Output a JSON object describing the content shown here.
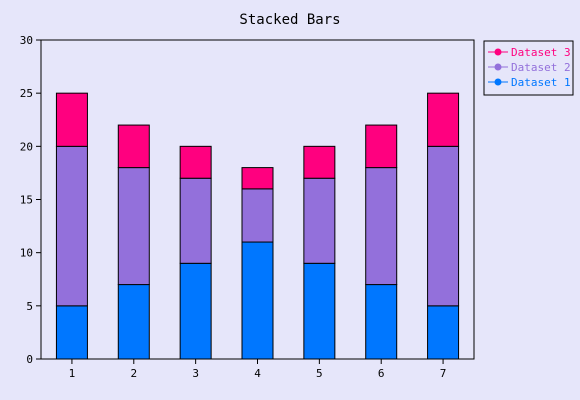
{
  "chart_data": {
    "type": "bar",
    "stacked": true,
    "title": "Stacked Bars",
    "xlabel": "",
    "ylabel": "",
    "categories": [
      "1",
      "2",
      "3",
      "4",
      "5",
      "6",
      "7"
    ],
    "series": [
      {
        "name": "Dataset 1",
        "values": [
          5,
          7,
          9,
          11,
          9,
          7,
          5
        ],
        "color": "#0077ff"
      },
      {
        "name": "Dataset 2",
        "values": [
          15,
          11,
          8,
          5,
          8,
          11,
          15
        ],
        "color": "#9370db"
      },
      {
        "name": "Dataset 3",
        "values": [
          5,
          4,
          3,
          2,
          3,
          4,
          5
        ],
        "color": "#ff007f"
      }
    ],
    "ylim": [
      0,
      30
    ],
    "yticks": [
      0,
      5,
      10,
      15,
      20,
      25,
      30
    ],
    "grid": false,
    "legend_position": "top-right",
    "background": "#e6e6fa",
    "plot_background": "#e6e6fa"
  }
}
